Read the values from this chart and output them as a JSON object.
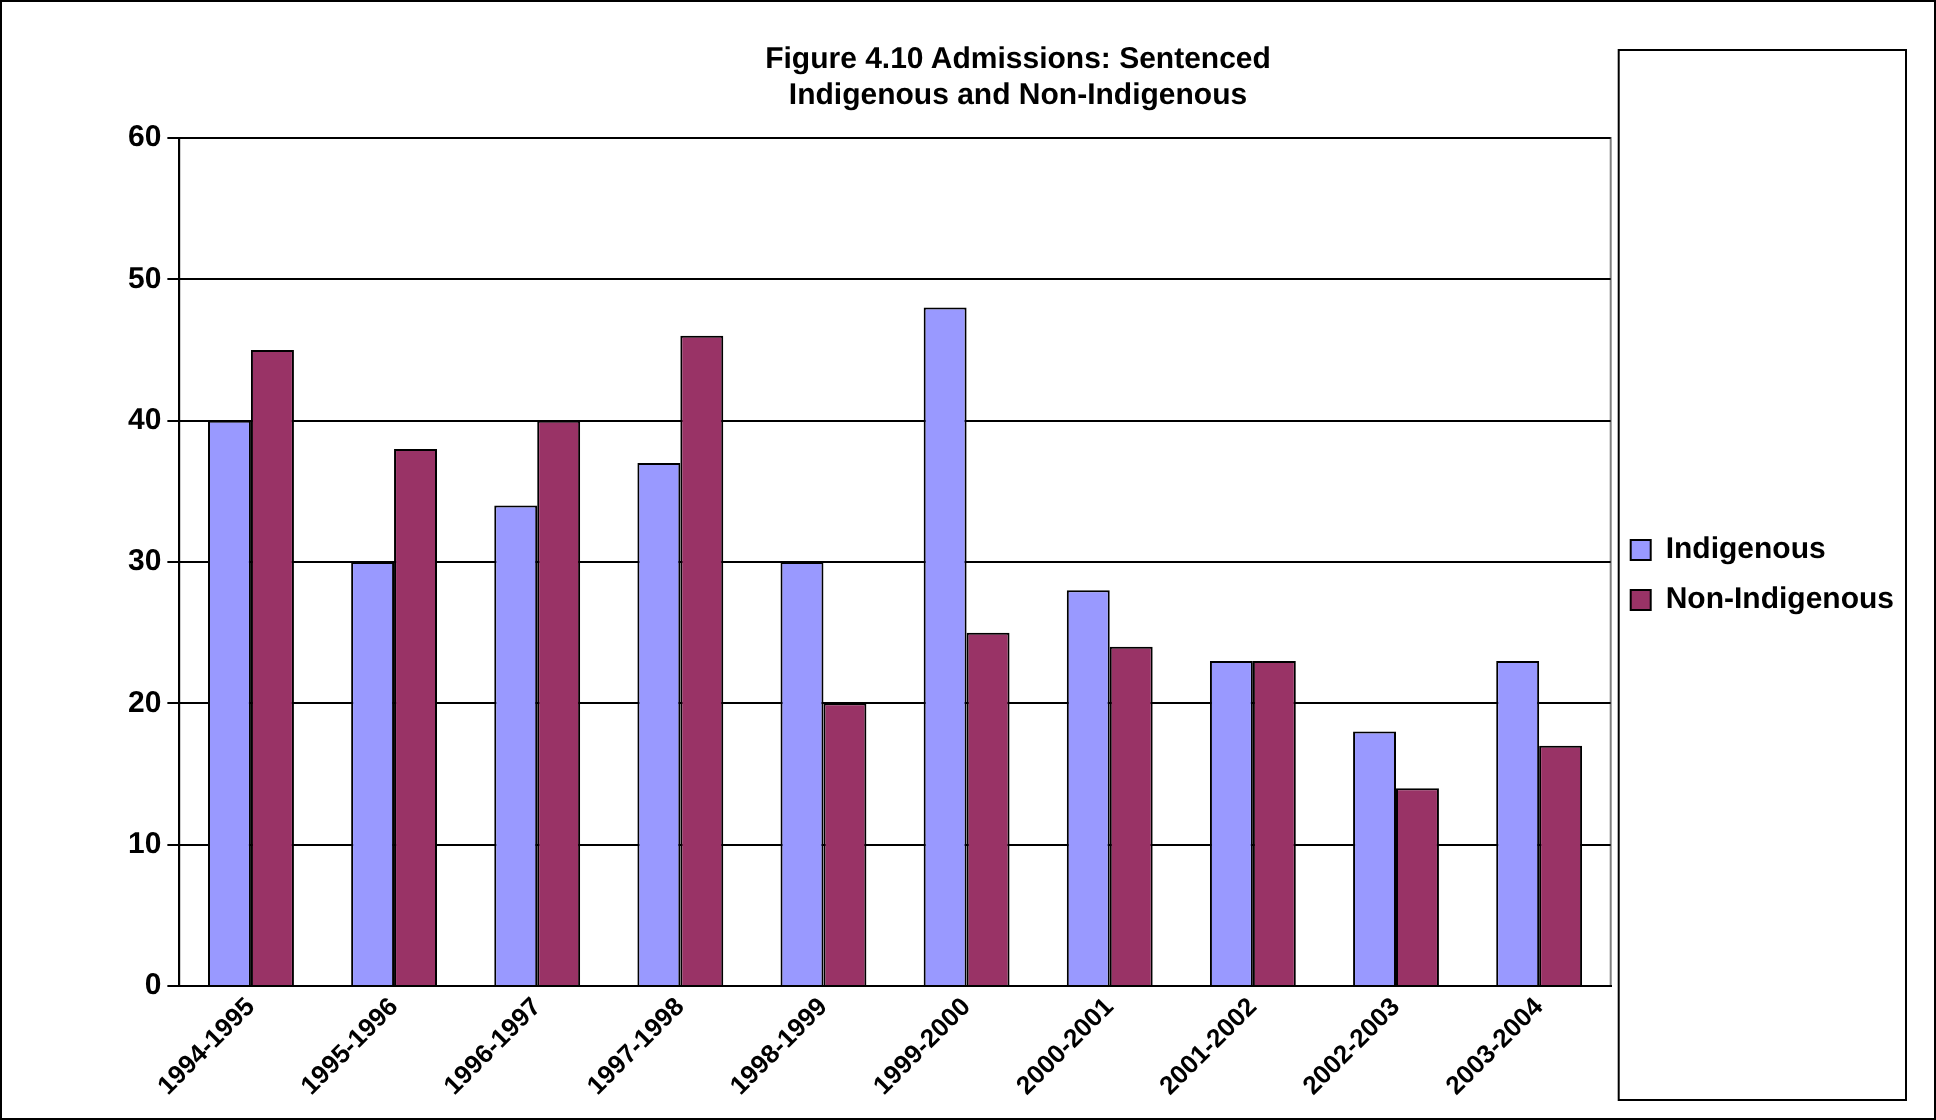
{
  "chart_data": {
    "type": "bar",
    "title": "Figure 4.10 Admissions: Sentenced\nIndigenous and Non-Indigenous",
    "categories": [
      "1994-1995",
      "1995-1996",
      "1996-1997",
      "1997-1998",
      "1998-1999",
      "1999-2000",
      "2000-2001",
      "2001-2002",
      "2002-2003",
      "2003-2004"
    ],
    "series": [
      {
        "name": "Indigenous",
        "color": "#9999ff",
        "values": [
          40,
          30,
          34,
          37,
          30,
          48,
          28,
          23,
          18,
          23
        ]
      },
      {
        "name": "Non-Indigenous",
        "color": "#993366",
        "values": [
          45,
          38,
          40,
          46,
          20,
          25,
          24,
          23,
          14,
          17
        ]
      }
    ],
    "ylim": [
      0,
      60
    ],
    "yticks": [
      0,
      10,
      20,
      30,
      40,
      50,
      60
    ],
    "grid": "y",
    "legend": "right"
  }
}
